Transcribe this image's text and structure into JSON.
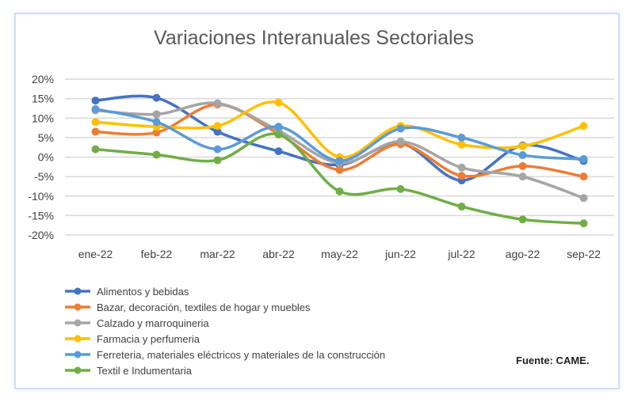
{
  "chart_data": {
    "type": "line",
    "title": "Variaciones Interanuales Sectoriales",
    "categories": [
      "ene-22",
      "feb-22",
      "mar-22",
      "abr-22",
      "may-22",
      "jun-22",
      "jul-22",
      "ago-22",
      "sep-22"
    ],
    "ylim": [
      -20,
      20
    ],
    "yticks": [
      "-20%",
      "-15%",
      "-10%",
      "-5%",
      "0%",
      "5%",
      "10%",
      "15%",
      "20%"
    ],
    "grid": true,
    "legend_position": "bottom-left",
    "series": [
      {
        "name": "Alimentos y bebidas",
        "color": "#4472c4",
        "values": [
          14.5,
          15.2,
          6.5,
          1.5,
          -2,
          3.5,
          -6,
          3,
          -1
        ]
      },
      {
        "name": "Bazar, decoración, textiles de hogar y muebles",
        "color": "#ed7d31",
        "values": [
          6.5,
          6.3,
          13.5,
          6,
          -3.3,
          3.3,
          -4.8,
          -2.3,
          -5
        ]
      },
      {
        "name": "Calzado y marroquineria",
        "color": "#a5a5a5",
        "values": [
          12,
          11,
          13.8,
          6.8,
          -1.5,
          4,
          -2.7,
          -5,
          -10.5
        ]
      },
      {
        "name": "Farmacia y perfumeria",
        "color": "#ffc000",
        "values": [
          9,
          7.8,
          8,
          14,
          0,
          8,
          3.2,
          2.8,
          8
        ]
      },
      {
        "name": "Ferreteria, materiales eléctricos y materiales de la construcción",
        "color": "#5b9bd5",
        "values": [
          12.3,
          9,
          2,
          7.8,
          -1,
          7.3,
          5,
          0.5,
          -0.5
        ]
      },
      {
        "name": "Textil e Indumentaria",
        "color": "#70ad47",
        "values": [
          2,
          0.6,
          -0.8,
          5.8,
          -8.8,
          -8.2,
          -12.7,
          -16,
          -17
        ]
      }
    ]
  },
  "source": "Fuente: CAME."
}
